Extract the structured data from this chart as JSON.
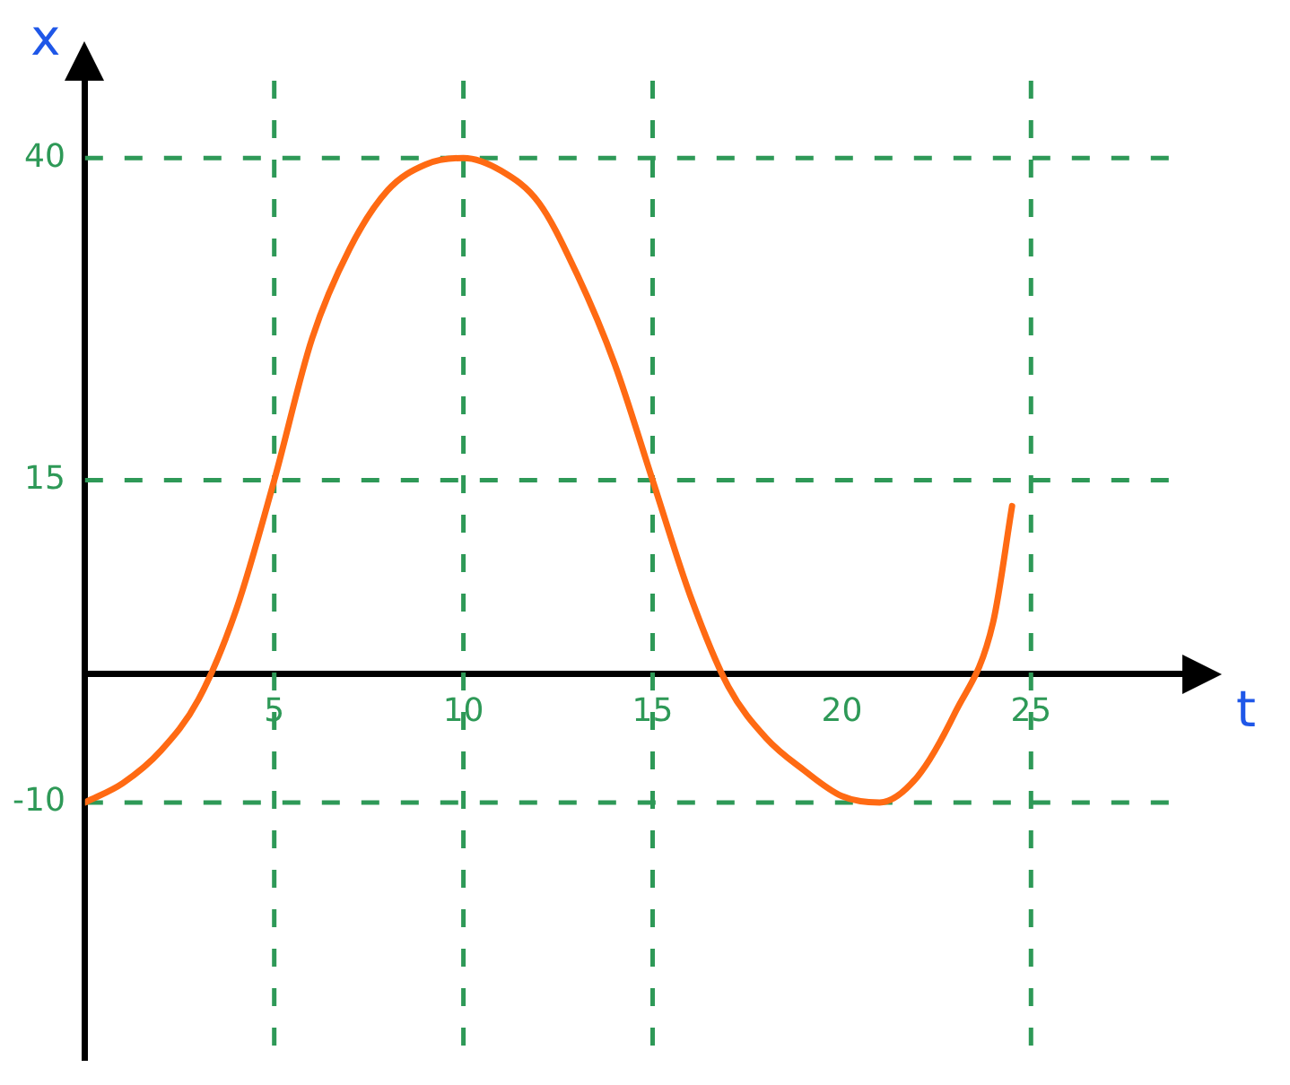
{
  "chart_data": {
    "type": "line",
    "xlabel": "t",
    "ylabel": "x",
    "series": [
      {
        "color": "#ff6a13",
        "x": [
          0,
          1,
          2,
          3,
          4,
          5,
          6,
          7,
          8,
          9,
          10,
          11,
          12,
          13,
          14,
          15,
          16,
          17,
          18,
          19,
          20,
          21,
          22,
          23,
          24,
          24.5
        ],
        "values": [
          -10,
          -8.5,
          -6,
          -2,
          5,
          15,
          26,
          33,
          37.5,
          39.5,
          40,
          39,
          36.5,
          31,
          24,
          15,
          6,
          -1,
          -5,
          -7.5,
          -9.5,
          -10,
          -8,
          -3,
          4,
          13
        ]
      }
    ],
    "xlim": [
      0,
      29
    ],
    "ylim": [
      -30,
      46
    ],
    "xticks": [
      5,
      10,
      15,
      20,
      25
    ],
    "yticks": [
      -10,
      15,
      40
    ],
    "ref_lines": [
      {
        "axis": "y",
        "value": 40,
        "color": "#2e9957",
        "line_style": "dashed"
      },
      {
        "axis": "y",
        "value": 15,
        "color": "#2e9957",
        "line_style": "dashed"
      },
      {
        "axis": "y",
        "value": -10,
        "color": "#2e9957",
        "line_style": "dashed"
      },
      {
        "axis": "x",
        "value": 5,
        "color": "#2e9957",
        "line_style": "dashed"
      },
      {
        "axis": "x",
        "value": 10,
        "color": "#2e9957",
        "line_style": "dashed"
      },
      {
        "axis": "x",
        "value": 15,
        "color": "#2e9957",
        "line_style": "dashed"
      },
      {
        "axis": "x",
        "value": 25,
        "color": "#2e9957",
        "line_style": "dashed"
      }
    ],
    "grid": false,
    "legend": false,
    "marker": "none",
    "line_style": "solid"
  }
}
